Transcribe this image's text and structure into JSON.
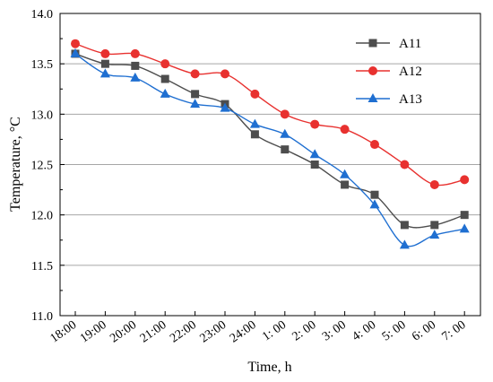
{
  "chart_data": {
    "type": "line",
    "title": "",
    "xlabel": "Time, h",
    "ylabel": "Temperature, °C",
    "categories": [
      "18:00",
      "19:00",
      "20:00",
      "21:00",
      "22:00",
      "23:00",
      "24:00",
      "1:  00",
      "2:  00",
      "3:  00",
      "4:  00",
      "5:  00",
      "6:  00",
      "7:  00"
    ],
    "ylim": [
      11.0,
      14.0
    ],
    "yticks": [
      "11.0",
      "11.5",
      "12.0",
      "12.5",
      "13.0",
      "13.5",
      "14.0"
    ],
    "grid": true,
    "legend_position": "top-right",
    "series": [
      {
        "name": "A11",
        "color": "#4d4d4d",
        "marker": "square",
        "values": [
          13.6,
          13.5,
          13.48,
          13.35,
          13.2,
          13.1,
          12.8,
          12.65,
          12.5,
          12.3,
          12.2,
          11.9,
          11.9,
          12.0
        ]
      },
      {
        "name": "A12",
        "color": "#e8312f",
        "marker": "circle",
        "values": [
          13.7,
          13.6,
          13.6,
          13.5,
          13.4,
          13.4,
          13.2,
          13.0,
          12.9,
          12.85,
          12.7,
          12.5,
          12.3,
          12.35
        ]
      },
      {
        "name": "A13",
        "color": "#1f6fd1",
        "marker": "triangle",
        "values": [
          13.6,
          13.4,
          13.36,
          13.2,
          13.1,
          13.06,
          12.9,
          12.8,
          12.6,
          12.4,
          12.1,
          11.7,
          11.8,
          11.86
        ]
      }
    ]
  }
}
